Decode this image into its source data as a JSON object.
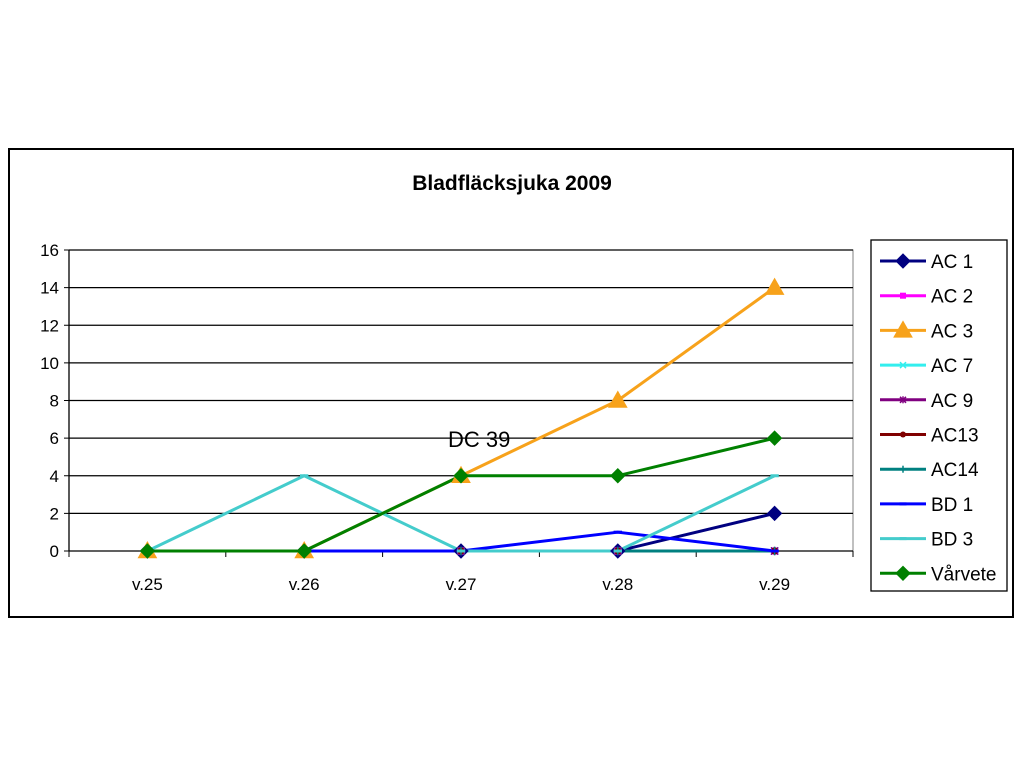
{
  "chart_data": {
    "type": "line",
    "title": "Bladfläcksjuka 2009",
    "xlabel": "",
    "ylabel": "",
    "categories": [
      "v.25",
      "v.26",
      "v.27",
      "v.28",
      "v.29"
    ],
    "ylim": [
      0,
      16
    ],
    "yticks": [
      "0",
      "2",
      "4",
      "6",
      "8",
      "10",
      "12",
      "14",
      "16"
    ],
    "grid": "horizontal",
    "legend_position": "right",
    "annotation": "DC 39",
    "series": [
      {
        "name": "AC 1",
        "values": [
          0,
          0,
          0,
          0,
          2
        ],
        "color": "#000080",
        "marker": "diamond"
      },
      {
        "name": "AC 2",
        "values": [
          0,
          0,
          0,
          0,
          0
        ],
        "color": "#FF00FF",
        "marker": "square"
      },
      {
        "name": "AC 3",
        "values": [
          0,
          0,
          4,
          8,
          14
        ],
        "color": "#F7A21B",
        "marker": "triangle"
      },
      {
        "name": "AC 7",
        "values": [
          0,
          0,
          0,
          0,
          0
        ],
        "color": "#33EEEE",
        "marker": "x"
      },
      {
        "name": "AC 9",
        "values": [
          0,
          0,
          0,
          0,
          0
        ],
        "color": "#800080",
        "marker": "star"
      },
      {
        "name": "AC13",
        "values": [
          0,
          0,
          0,
          0,
          0
        ],
        "color": "#800000",
        "marker": "circle"
      },
      {
        "name": "AC14",
        "values": [
          0,
          0,
          0,
          0,
          0
        ],
        "color": "#008080",
        "marker": "plus"
      },
      {
        "name": "BD 1",
        "values": [
          0,
          0,
          0,
          1,
          0
        ],
        "color": "#0000FF",
        "marker": "dash"
      },
      {
        "name": "BD 3",
        "values": [
          0,
          4,
          0,
          0,
          4
        ],
        "color": "#44CCCC",
        "marker": "dash"
      },
      {
        "name": "Vårvete",
        "values": [
          0,
          0,
          4,
          4,
          6
        ],
        "color": "#008000",
        "marker": "diamond"
      }
    ]
  }
}
